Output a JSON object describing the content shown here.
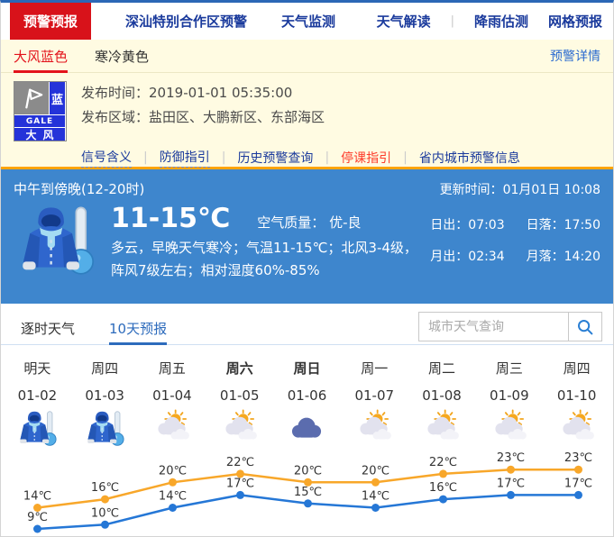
{
  "nav": {
    "active_tab": "预警预报",
    "tabs": [
      "深汕特别合作区预警",
      "天气监测"
    ],
    "right_links": [
      "天气解读",
      "降雨估测",
      "网格预报"
    ]
  },
  "alert": {
    "tabs": [
      {
        "label": "大风蓝色",
        "active": true
      },
      {
        "label": "寒冷黄色",
        "active": false
      }
    ],
    "detail_link": "预警详情",
    "icon": {
      "badge": "蓝",
      "code": "GALE",
      "name": "大风"
    },
    "publish_time_label": "发布时间：",
    "publish_time": "2019-01-01 05:35:00",
    "publish_area_label": "发布区域：",
    "publish_area": "盐田区、大鹏新区、东部海区",
    "links": [
      {
        "label": "信号含义",
        "style": "dotted"
      },
      {
        "label": "防御指引",
        "style": "dotted"
      },
      {
        "label": "历史预警查询",
        "style": "plain"
      },
      {
        "label": "停课指引",
        "style": "red"
      },
      {
        "label": "省内城市预警信息",
        "style": "plain"
      }
    ]
  },
  "current": {
    "period": "中午到傍晚(12-20时)",
    "update_label": "更新时间：",
    "update_time": "01月01日 10:08",
    "temp_range": "11-15℃",
    "air_quality_label": "空气质量：",
    "air_quality": "优-良",
    "description": "多云，早晚天气寒冷；气温11-15℃；北风3-4级，阵风7级左右；相对湿度60%-85%",
    "sun_moon": [
      {
        "label": "日出：",
        "value": "07:03"
      },
      {
        "label": "日落：",
        "value": "17:50"
      },
      {
        "label": "月出：",
        "value": "02:34"
      },
      {
        "label": "月落：",
        "value": "14:20"
      }
    ]
  },
  "forecast": {
    "tabs": [
      {
        "label": "逐时天气",
        "active": false
      },
      {
        "label": "10天预报",
        "active": true
      }
    ],
    "search_placeholder": "城市天气查询",
    "days": [
      {
        "name": "明天",
        "date": "01-02",
        "icon": "cold",
        "bold": false
      },
      {
        "name": "周四",
        "date": "01-03",
        "icon": "cold",
        "bold": false
      },
      {
        "name": "周五",
        "date": "01-04",
        "icon": "partly-cloudy",
        "bold": false
      },
      {
        "name": "周六",
        "date": "01-05",
        "icon": "partly-cloudy",
        "bold": true
      },
      {
        "name": "周日",
        "date": "01-06",
        "icon": "cloudy",
        "bold": true
      },
      {
        "name": "周一",
        "date": "01-07",
        "icon": "partly-cloudy",
        "bold": false
      },
      {
        "name": "周二",
        "date": "01-08",
        "icon": "partly-cloudy",
        "bold": false
      },
      {
        "name": "周三",
        "date": "01-09",
        "icon": "partly-cloudy",
        "bold": false
      },
      {
        "name": "周四",
        "date": "01-10",
        "icon": "partly-cloudy",
        "bold": false
      }
    ]
  },
  "chart_data": {
    "type": "line",
    "categories": [
      "01-02",
      "01-03",
      "01-04",
      "01-05",
      "01-06",
      "01-07",
      "01-08",
      "01-09",
      "01-10"
    ],
    "series": [
      {
        "name": "最高气温",
        "color": "#f8a72a",
        "values": [
          14,
          16,
          20,
          22,
          20,
          20,
          22,
          23,
          23
        ]
      },
      {
        "name": "最低气温",
        "color": "#2577d6",
        "values": [
          9,
          10,
          14,
          17,
          15,
          14,
          16,
          17,
          17
        ]
      }
    ],
    "unit": "℃",
    "ylim": [
      7,
      25
    ],
    "data_labels": true,
    "legend": false,
    "grid": false
  },
  "colors": {
    "accent_red": "#d8121a",
    "nav_blue": "#1a3a9c",
    "panel_yellow": "#fffbe2",
    "panel_blue": "#3e86cd",
    "panel_orange_border": "#ffa40c",
    "tab_active_blue": "#2d6bbc",
    "high_line": "#f8a72a",
    "low_line": "#2577d6"
  }
}
